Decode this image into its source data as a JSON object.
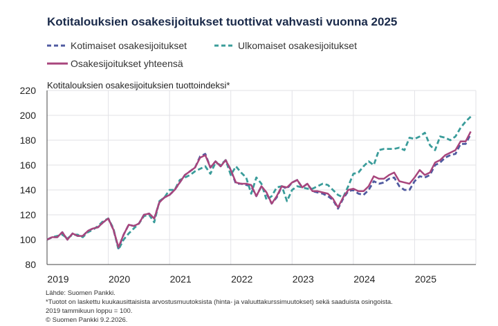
{
  "chart_data": {
    "type": "line",
    "title": "Kotitalouksien osakesijoitukset tuottivat vahvasti vuonna 2025",
    "ylabel": "Kotitalouksien osakesijoituksien tuottoindeksi*",
    "xlabel": "",
    "ylim": [
      80,
      220
    ],
    "yticks": [
      80,
      100,
      120,
      140,
      160,
      180,
      200,
      220
    ],
    "xticks": [
      "2019",
      "2020",
      "2021",
      "2022",
      "2023",
      "2024",
      "2025"
    ],
    "x_start": "2019-01",
    "frequency": "monthly",
    "grid": true,
    "legend": "top",
    "series": [
      {
        "name": "Kotimaiset osakesijoitukset",
        "style": "dashed",
        "color": "#4f5aa0",
        "values": [
          100,
          102,
          102,
          106,
          100,
          105,
          103,
          103,
          107,
          109,
          110,
          114,
          117,
          108,
          93,
          104,
          112,
          111,
          113,
          120,
          121,
          117,
          130,
          134,
          136,
          140,
          146,
          152,
          155,
          158,
          167,
          169,
          158,
          163,
          159,
          164,
          156,
          145,
          145,
          144,
          143,
          135,
          143,
          137,
          129,
          134,
          143,
          141,
          146,
          148,
          142,
          145,
          139,
          138,
          137,
          135,
          132,
          125,
          133,
          139,
          140,
          137,
          136,
          140,
          147,
          145,
          146,
          149,
          150,
          143,
          140,
          140,
          147,
          151,
          150,
          152,
          160,
          162,
          166,
          168,
          169,
          177,
          177,
          185
        ]
      },
      {
        "name": "Ulkomaiset osakesijoitukset",
        "style": "dashed",
        "color": "#3a9c9a",
        "values": [
          100,
          102,
          103,
          104,
          101,
          104,
          104,
          102,
          106,
          108,
          111,
          115,
          117,
          109,
          92,
          100,
          105,
          109,
          113,
          119,
          120,
          114,
          131,
          134,
          140,
          140,
          148,
          150,
          152,
          155,
          157,
          159,
          153,
          162,
          160,
          164,
          152,
          159,
          154,
          150,
          137,
          150,
          145,
          132,
          135,
          142,
          143,
          131,
          140,
          143,
          142,
          141,
          141,
          143,
          145,
          144,
          140,
          136,
          134,
          143,
          153,
          154,
          159,
          163,
          160,
          172,
          173,
          173,
          173,
          174,
          172,
          182,
          181,
          183,
          186,
          176,
          172,
          183,
          182,
          180,
          183,
          190,
          195,
          199
        ]
      },
      {
        "name": "Osakesijoitukset yhteensä",
        "style": "solid",
        "color": "#a8457c",
        "values": [
          100,
          102,
          102,
          106,
          100,
          105,
          103,
          103,
          107,
          109,
          110,
          114,
          117,
          108,
          94,
          104,
          112,
          111,
          113,
          120,
          121,
          117,
          130,
          134,
          136,
          140,
          146,
          152,
          155,
          158,
          166,
          168,
          158,
          163,
          159,
          164,
          156,
          146,
          145,
          145,
          144,
          135,
          143,
          138,
          129,
          135,
          143,
          142,
          146,
          148,
          142,
          145,
          139,
          139,
          138,
          137,
          133,
          126,
          134,
          140,
          141,
          139,
          139,
          143,
          151,
          149,
          149,
          152,
          154,
          147,
          146,
          145,
          150,
          156,
          152,
          154,
          162,
          164,
          168,
          170,
          172,
          179,
          179,
          187
        ]
      }
    ]
  },
  "notes": [
    "Lähde: Suomen Pankki.",
    "*Tuotot on laskettu kuukausittaisista arvostusmuutoksista (hinta- ja valuuttakurssimuutokset) sekä saaduista osingoista.",
    "2019 tammikuun loppu = 100.",
    "© Suomen Pankki 9.2.2026."
  ]
}
